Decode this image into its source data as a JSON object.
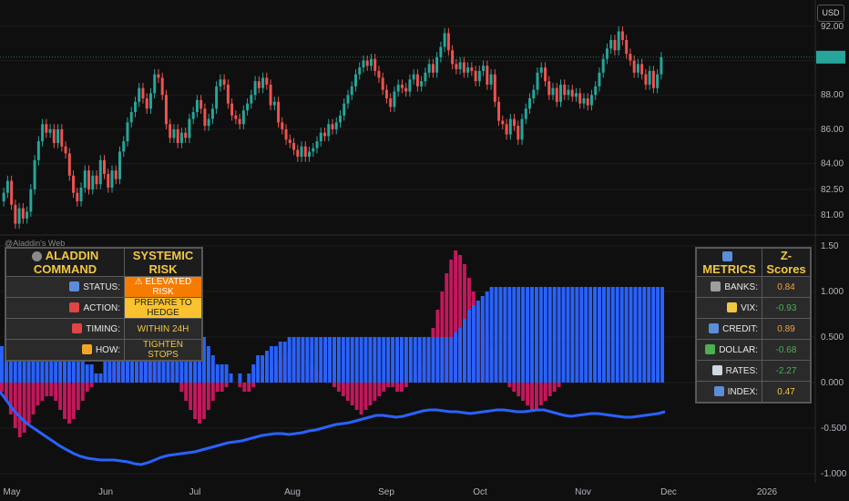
{
  "header": {
    "currency": "USD"
  },
  "watermark": "@Aladdin's Web",
  "price_axis": {
    "ticks": [
      "92.00",
      "90.00",
      "88.00",
      "86.00",
      "84.00",
      "82.50",
      "81.00"
    ]
  },
  "osc_axis": {
    "ticks": [
      "1.50",
      "1.000",
      "0.500",
      "0.000",
      "-0.500",
      "-1.000"
    ]
  },
  "time_axis": {
    "ticks": [
      "May",
      "Jun",
      "Jul",
      "Aug",
      "Sep",
      "Oct",
      "Nov",
      "Dec",
      "2026"
    ]
  },
  "colors": {
    "up": "#26a69a",
    "down": "#ef5350",
    "hist_pos": "#2962ff",
    "hist_neg": "#c2185b",
    "line": "#2962ff"
  },
  "command_panel": {
    "title": "ALADDIN COMMAND",
    "title_icon": "ship-wheel-icon",
    "subtitle": "SYSTEMIC RISK",
    "rows": [
      {
        "label": "STATUS:",
        "icon": "bar-chart-icon",
        "value": "⚠ ELEVATED RISK",
        "bg": "#f57c00",
        "fg": "#ffffff"
      },
      {
        "label": "ACTION:",
        "icon": "target-icon",
        "value": "PREPARE TO HEDGE",
        "bg": "#f9c22e",
        "fg": "#222222"
      },
      {
        "label": "TIMING:",
        "icon": "alarm-clock-icon",
        "value": "WITHIN 24H",
        "bg": "#2a2a2a",
        "fg": "#f2c744"
      },
      {
        "label": "HOW:",
        "icon": "lightning-icon",
        "value": "TIGHTEN STOPS",
        "bg": "#2a2a2a",
        "fg": "#f2c744"
      }
    ]
  },
  "metrics_panel": {
    "title": "METRICS",
    "title_icon": "bar-chart-icon",
    "subtitle": "Z-Scores",
    "rows": [
      {
        "label": "BANKS:",
        "icon": "bank-icon",
        "value": "0.84",
        "fg": "#f2a33a"
      },
      {
        "label": "VIX:",
        "icon": "scream-icon",
        "value": "-0.93",
        "fg": "#4caf50"
      },
      {
        "label": "CREDIT:",
        "icon": "card-icon",
        "value": "0.89",
        "fg": "#f2a33a"
      },
      {
        "label": "DOLLAR:",
        "icon": "money-icon",
        "value": "-0.68",
        "fg": "#4caf50"
      },
      {
        "label": "RATES:",
        "icon": "chart-icon",
        "value": "-2.27",
        "fg": "#4caf50"
      },
      {
        "label": "INDEX:",
        "icon": "bar-chart-icon",
        "value": "0.47",
        "fg": "#f2c744"
      }
    ]
  },
  "chart_data": [
    {
      "type": "candlestick",
      "ylim": [
        80.0,
        93.0
      ],
      "close": [
        82.3,
        83.0,
        81.6,
        80.5,
        81.4,
        80.8,
        81.2,
        82.5,
        84.2,
        85.3,
        86.3,
        85.8,
        86.0,
        85.2,
        86.0,
        85.0,
        84.6,
        83.3,
        82.3,
        81.8,
        82.6,
        83.6,
        82.5,
        83.3,
        82.8,
        84.2,
        83.4,
        82.6,
        83.6,
        83.1,
        84.7,
        85.3,
        86.4,
        87.0,
        87.6,
        88.4,
        87.8,
        87.2,
        88.1,
        89.2,
        89.0,
        88.0,
        86.3,
        85.5,
        86.0,
        85.2,
        85.8,
        85.5,
        86.6,
        87.0,
        87.7,
        87.2,
        86.2,
        86.6,
        87.2,
        88.5,
        88.9,
        88.6,
        87.5,
        86.8,
        86.6,
        86.3,
        87.1,
        87.5,
        88.0,
        88.8,
        88.4,
        89.0,
        88.6,
        87.4,
        87.6,
        86.4,
        86.0,
        85.4,
        85.2,
        84.8,
        84.4,
        85.0,
        84.4,
        84.7,
        84.9,
        85.3,
        85.8,
        85.6,
        86.3,
        86.0,
        86.4,
        86.8,
        87.5,
        88.0,
        88.5,
        89.2,
        89.6,
        90.0,
        89.7,
        90.1,
        89.4,
        89.0,
        88.3,
        87.8,
        87.3,
        88.2,
        88.6,
        88.4,
        88.2,
        88.9,
        89.2,
        88.5,
        88.8,
        89.3,
        89.8,
        89.3,
        90.2,
        90.8,
        91.6,
        90.6,
        89.8,
        89.5,
        89.9,
        89.3,
        89.6,
        89.4,
        88.8,
        89.4,
        89.7,
        88.6,
        89.2,
        87.6,
        86.5,
        86.3,
        85.7,
        86.6,
        86.2,
        85.4,
        86.6,
        87.2,
        87.8,
        88.3,
        89.3,
        89.6,
        88.8,
        88.0,
        88.4,
        87.6,
        88.6,
        88.0,
        88.3,
        87.9,
        88.1,
        87.5,
        87.8,
        87.4,
        88.0,
        88.5,
        89.3,
        90.1,
        90.7,
        91.2,
        90.6,
        91.7,
        91.2,
        90.4,
        90.0,
        89.3,
        89.8,
        89.2,
        88.6,
        89.4,
        88.4,
        89.2,
        90.2
      ]
    },
    {
      "type": "bar_line",
      "ylim": [
        -1.05,
        1.55
      ],
      "histogram": [
        0.4,
        0.6,
        0.8,
        0.5,
        0.3,
        0.7,
        0.8,
        1.0,
        1.2,
        1.0,
        0.9,
        0.8,
        0.7,
        0.6,
        0.6,
        0.5,
        0.5,
        0.4,
        0.3,
        0.2,
        0.2,
        0.1,
        0.1,
        0.3,
        0.35,
        0.45,
        0.55,
        0.6,
        0.7,
        0.75,
        0.8,
        0.85,
        0.95,
        0.95,
        0.95,
        1.0,
        1.0,
        0.95,
        0.95,
        0.9,
        0.9,
        0.85,
        0.8,
        0.7,
        0.6,
        0.5,
        0.4,
        0.3,
        0.2,
        0.2,
        0.2,
        0.1,
        0.0,
        0.1,
        0.0,
        0.1,
        0.2,
        0.3,
        0.3,
        0.35,
        0.4,
        0.4,
        0.45,
        0.45,
        0.5,
        0.5,
        0.5,
        0.5,
        0.5,
        0.5,
        0.5,
        0.5,
        0.5,
        0.5,
        0.5,
        0.5,
        0.5,
        0.5,
        0.5,
        0.5,
        0.5,
        0.5,
        0.5,
        0.5,
        0.5,
        0.5,
        0.5,
        0.5,
        0.5,
        0.5,
        0.5,
        0.5,
        0.5,
        0.5,
        0.5,
        0.5,
        0.5,
        0.5,
        0.5,
        0.5,
        0.5,
        0.55,
        0.6,
        0.7,
        0.8,
        0.85,
        0.9,
        0.95,
        1.0,
        1.05,
        1.05,
        1.05,
        1.05,
        1.05,
        1.05,
        1.05,
        1.05,
        1.05,
        1.05,
        1.05,
        1.05,
        1.05,
        1.05,
        1.05,
        1.05,
        1.05,
        1.05,
        1.05,
        1.05,
        1.05,
        1.05,
        1.05,
        1.05,
        1.05,
        1.05,
        1.05,
        1.05,
        1.05,
        1.05,
        1.05,
        1.05,
        1.05,
        1.05,
        1.05,
        1.05,
        1.05,
        1.05,
        1.05
      ],
      "momentum": [
        -0.1,
        -0.2,
        -0.35,
        -0.5,
        -0.6,
        -0.55,
        -0.45,
        -0.35,
        -0.25,
        -0.2,
        -0.15,
        -0.15,
        -0.2,
        -0.3,
        -0.4,
        -0.45,
        -0.4,
        -0.3,
        -0.2,
        -0.1,
        -0.05,
        0.0,
        0.05,
        0.1,
        0.15,
        0.2,
        0.25,
        0.3,
        0.35,
        0.4,
        0.45,
        0.5,
        0.55,
        0.5,
        0.45,
        0.4,
        0.3,
        0.2,
        0.1,
        0.0,
        -0.1,
        -0.2,
        -0.3,
        -0.4,
        -0.45,
        -0.4,
        -0.3,
        -0.2,
        -0.1,
        -0.1,
        -0.05,
        0.0,
        0.0,
        -0.05,
        -0.1,
        -0.1,
        -0.05,
        0.0,
        0.05,
        0.1,
        0.15,
        0.2,
        0.25,
        0.3,
        0.35,
        0.4,
        0.35,
        0.3,
        0.25,
        0.2,
        0.15,
        0.1,
        0.05,
        0.0,
        -0.05,
        -0.1,
        -0.15,
        -0.2,
        -0.25,
        -0.3,
        -0.35,
        -0.3,
        -0.25,
        -0.2,
        -0.15,
        -0.1,
        -0.05,
        -0.05,
        -0.1,
        -0.1,
        -0.05,
        0.0,
        0.1,
        0.2,
        0.3,
        0.45,
        0.6,
        0.8,
        1.0,
        1.2,
        1.35,
        1.45,
        1.4,
        1.3,
        1.15,
        1.0,
        0.85,
        0.7,
        0.55,
        0.4,
        0.25,
        0.1,
        0.0,
        -0.05,
        -0.1,
        -0.15,
        -0.2,
        -0.25,
        -0.3,
        -0.3,
        -0.25,
        -0.2,
        -0.15,
        -0.1,
        -0.05,
        0.0,
        0.0,
        0.0,
        0.0,
        0.0,
        0.0,
        0.0,
        0.0,
        0.0,
        0.0,
        0.0,
        0.0,
        0.0,
        0.0,
        0.0,
        0.0,
        0.0,
        0.0,
        0.0,
        0.0,
        0.0,
        0.0,
        0.0
      ],
      "line": [
        -0.1,
        -0.2,
        -0.3,
        -0.38,
        -0.45,
        -0.5,
        -0.55,
        -0.6,
        -0.65,
        -0.7,
        -0.74,
        -0.78,
        -0.81,
        -0.83,
        -0.84,
        -0.85,
        -0.85,
        -0.85,
        -0.86,
        -0.87,
        -0.89,
        -0.9,
        -0.88,
        -0.85,
        -0.82,
        -0.8,
        -0.79,
        -0.78,
        -0.77,
        -0.76,
        -0.74,
        -0.72,
        -0.7,
        -0.68,
        -0.66,
        -0.65,
        -0.64,
        -0.62,
        -0.6,
        -0.58,
        -0.57,
        -0.56,
        -0.56,
        -0.57,
        -0.56,
        -0.55,
        -0.53,
        -0.52,
        -0.5,
        -0.48,
        -0.46,
        -0.45,
        -0.44,
        -0.42,
        -0.4,
        -0.38,
        -0.36,
        -0.36,
        -0.37,
        -0.38,
        -0.37,
        -0.35,
        -0.33,
        -0.31,
        -0.3,
        -0.3,
        -0.31,
        -0.32,
        -0.32,
        -0.33,
        -0.34,
        -0.33,
        -0.32,
        -0.31,
        -0.3,
        -0.3,
        -0.31,
        -0.32,
        -0.32,
        -0.31,
        -0.3,
        -0.3,
        -0.32,
        -0.34,
        -0.36,
        -0.37,
        -0.36,
        -0.35,
        -0.34,
        -0.34,
        -0.35,
        -0.36,
        -0.37,
        -0.38,
        -0.38,
        -0.37,
        -0.36,
        -0.35,
        -0.34,
        -0.32
      ]
    }
  ]
}
